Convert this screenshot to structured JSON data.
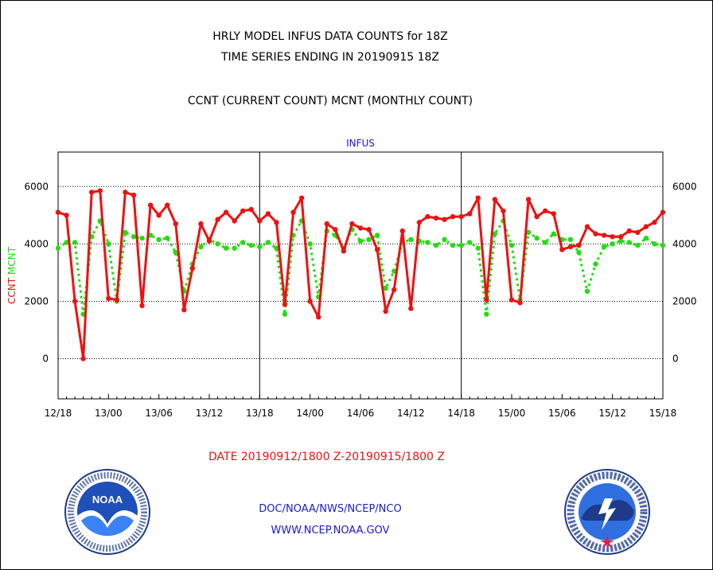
{
  "title_line1": "HRLY MODEL INFUS DATA COUNTS for 18Z",
  "title_line2": "TIME SERIES ENDING IN 20190915 18Z",
  "subtitle": "CCNT (CURRENT COUNT) MCNT (MONTHLY COUNT)",
  "date_range": "DATE 20190912/1800 Z-20190915/1800 Z",
  "credit_org": "DOC/NOAA/NWS/NCEP/NCO",
  "credit_url": "WWW.NCEP.NOAA.GOV",
  "logo_left": "noaa-logo",
  "logo_right": "nws-logo",
  "colors": {
    "ccnt": "#ee1111",
    "mcnt": "#22dd11",
    "axis_text": "#000000",
    "panel_title": "#1a1ad0",
    "date_text": "#ee1111"
  },
  "chart_data": {
    "type": "line",
    "title": "INFUS",
    "ylabel_left": [
      "CCNT",
      "MCNT"
    ],
    "x_ticks": [
      "12/18",
      "13/00",
      "13/06",
      "13/12",
      "13/18",
      "14/00",
      "14/06",
      "14/12",
      "14/18",
      "15/00",
      "15/06",
      "15/12",
      "15/18"
    ],
    "y_ticks": [
      0,
      2000,
      4000,
      6000
    ],
    "ylim": [
      -1400,
      7200
    ],
    "xlim": [
      0,
      72
    ],
    "grid": "horizontal dotted at 0, 2000, 4000, 6000; day separators at 13/18 and 14/18",
    "series": [
      {
        "name": "CCNT",
        "style": "solid",
        "x": [
          0,
          1,
          2,
          3,
          4,
          5,
          6,
          7,
          8,
          9,
          10,
          11,
          12,
          13,
          14,
          15,
          16,
          17,
          18,
          19,
          20,
          21,
          22,
          23,
          24,
          25,
          26,
          27,
          28,
          29,
          30,
          31,
          32,
          33,
          34,
          35,
          36,
          37,
          38,
          39,
          40,
          41,
          42,
          43,
          44,
          45,
          46,
          47,
          48,
          49,
          50,
          51,
          52,
          53,
          54,
          55,
          56,
          57,
          58,
          59,
          60,
          61,
          62,
          63,
          64,
          65,
          66,
          67,
          68,
          69,
          70,
          71,
          72
        ],
        "values": [
          5100,
          5000,
          2000,
          0,
          5800,
          5850,
          2100,
          2050,
          5800,
          5700,
          1850,
          5350,
          5000,
          5350,
          4700,
          1700,
          3150,
          4700,
          4100,
          4850,
          5100,
          4800,
          5150,
          5200,
          4800,
          5050,
          4750,
          1900,
          5100,
          5600,
          2000,
          1450,
          4700,
          4500,
          3750,
          4700,
          4550,
          4500,
          3800,
          1650,
          2400,
          4450,
          1750,
          4750,
          4950,
          4900,
          4850,
          4950,
          4950,
          5050,
          5600,
          2050,
          5550,
          5150,
          2050,
          1950,
          5550,
          4950,
          5150,
          5050,
          3800,
          3900,
          3950,
          4600,
          4350,
          4300,
          4250,
          4250,
          4450,
          4400,
          4600,
          4750,
          5100
        ]
      },
      {
        "name": "MCNT",
        "style": "dotted",
        "x": [
          0,
          1,
          2,
          3,
          4,
          5,
          6,
          7,
          8,
          9,
          10,
          11,
          12,
          13,
          14,
          15,
          16,
          17,
          18,
          19,
          20,
          21,
          22,
          23,
          24,
          25,
          26,
          27,
          28,
          29,
          30,
          31,
          32,
          33,
          34,
          35,
          36,
          37,
          38,
          39,
          40,
          41,
          42,
          43,
          44,
          45,
          46,
          47,
          48,
          49,
          50,
          51,
          52,
          53,
          54,
          55,
          56,
          57,
          58,
          59,
          60,
          61,
          62,
          63,
          64,
          65,
          66,
          67,
          68,
          69,
          70,
          71,
          72
        ],
        "values": [
          3850,
          4050,
          4050,
          1550,
          4250,
          4800,
          4000,
          2000,
          4400,
          4250,
          4200,
          4300,
          4150,
          4200,
          3700,
          2350,
          3300,
          3900,
          4150,
          4000,
          3850,
          3850,
          4050,
          3950,
          3900,
          4050,
          3850,
          1550,
          4300,
          4800,
          4000,
          2150,
          4450,
          4300,
          3850,
          4500,
          4100,
          4150,
          4300,
          2450,
          3050,
          4050,
          4150,
          4100,
          4050,
          3950,
          4150,
          3950,
          3950,
          4050,
          3850,
          1550,
          4350,
          4800,
          3950,
          2050,
          4400,
          4200,
          4050,
          4350,
          4150,
          4150,
          3700,
          2350,
          3300,
          3900,
          4000,
          4100,
          4050,
          3950,
          4200,
          4000,
          3950
        ]
      }
    ]
  }
}
